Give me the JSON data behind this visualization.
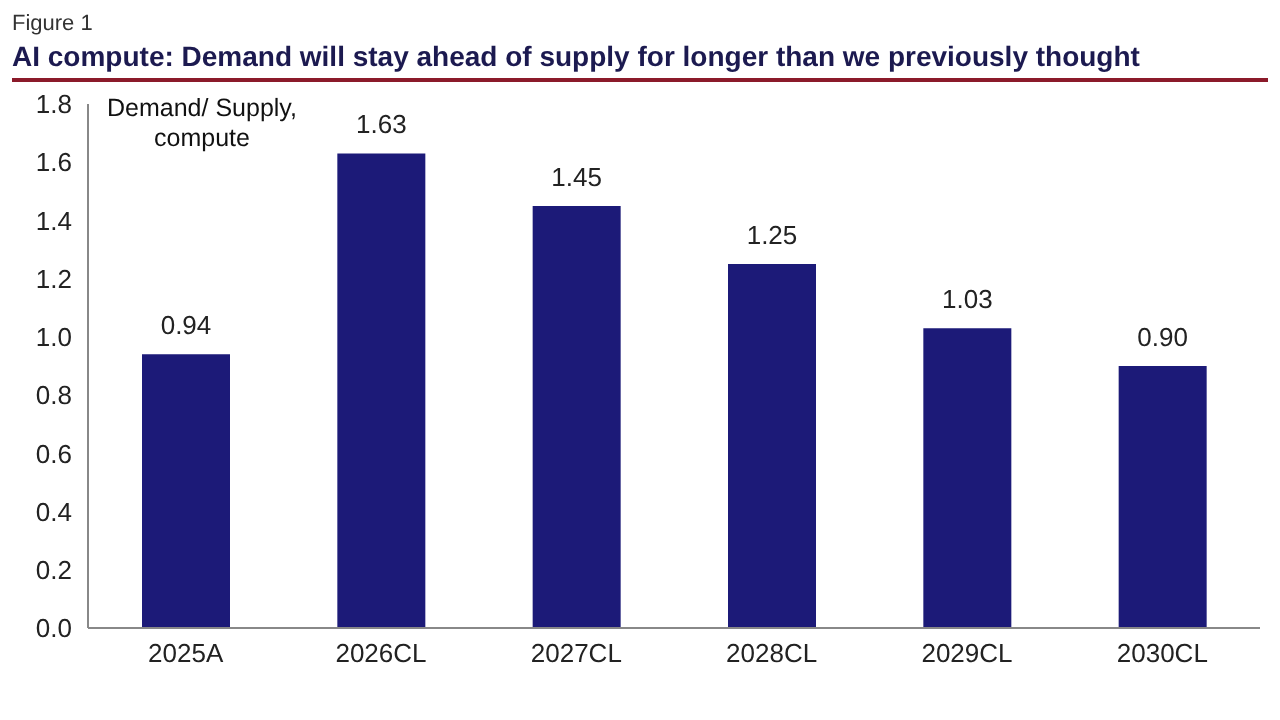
{
  "chart_data": {
    "type": "bar",
    "title": "AI compute: Demand will stay ahead of supply for longer than we previously thought",
    "ylabel": "Demand/ Supply, compute",
    "annotations": [
      "Figure 1"
    ],
    "categories": [
      "2025A",
      "2026CL",
      "2027CL",
      "2028CL",
      "2029CL",
      "2030CL"
    ],
    "values": [
      0.94,
      1.63,
      1.45,
      1.25,
      1.03,
      0.9
    ],
    "value_labels": [
      "0.94",
      "1.63",
      "1.45",
      "1.25",
      "1.03",
      "0.90"
    ],
    "color": "#1c1a78",
    "ylim": [
      0,
      1.8
    ],
    "yticks": [
      {
        "value": 0,
        "label": "0.0"
      },
      {
        "value": 0.2,
        "label": "0.2"
      },
      {
        "value": 0.4,
        "label": "0.4"
      },
      {
        "value": 0.6,
        "label": "0.6"
      },
      {
        "value": 0.8,
        "label": "0.8"
      },
      {
        "value": 1,
        "label": "1.0"
      },
      {
        "value": 1.2,
        "label": "1.2"
      },
      {
        "value": 1.4,
        "label": "1.4"
      },
      {
        "value": 1.6,
        "label": "1.6"
      },
      {
        "value": 1.8,
        "label": "1.8"
      }
    ],
    "grid": false,
    "legend": false
  }
}
